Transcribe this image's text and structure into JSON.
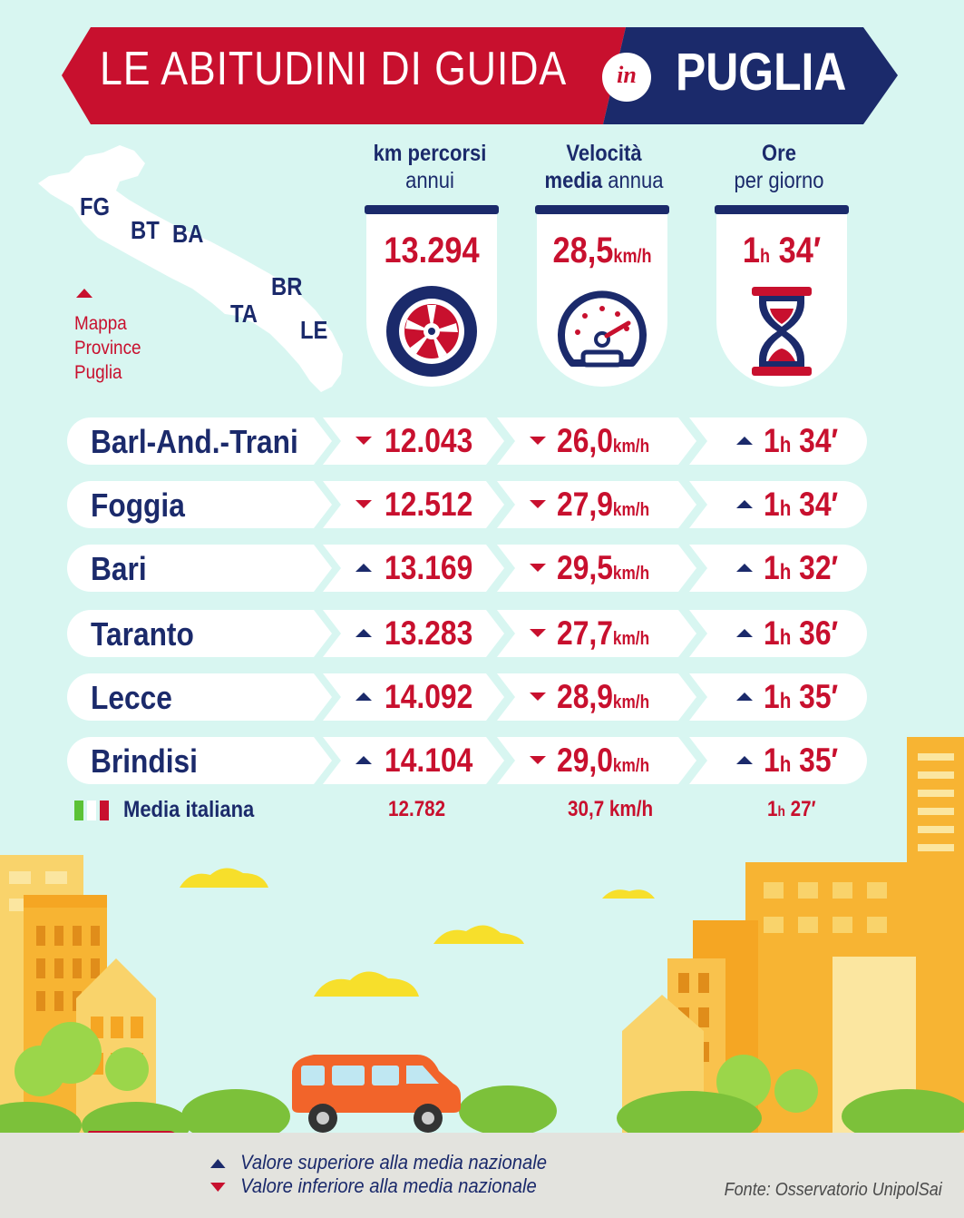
{
  "header": {
    "title": "LE ABITUDINI DI GUIDA",
    "connector": "in",
    "region": "PUGLIA",
    "colors": {
      "red": "#c8102e",
      "navy": "#1b2a6b"
    }
  },
  "map": {
    "provinces": [
      "FG",
      "BT",
      "BA",
      "BR",
      "TA",
      "LE"
    ],
    "caption": [
      "Mappa",
      "Province",
      "Puglia"
    ]
  },
  "columns": [
    {
      "head_bold": "km percorsi",
      "head_light": "annui",
      "value": "13.294",
      "unit": "",
      "icon": "tire-icon"
    },
    {
      "head_bold": "Velocità",
      "head_bold2": "media",
      "head_light": "annua",
      "value": "28,5",
      "unit": "km/h",
      "icon": "speedometer-icon"
    },
    {
      "head_bold": "Ore",
      "head_light": "per giorno",
      "value_h": "1",
      "value_unit_h": "h",
      "value_m": "34′",
      "icon": "hourglass-icon"
    }
  ],
  "rows": [
    {
      "name": "Barl-And.-Trani",
      "km": "12.043",
      "km_dir": "down",
      "vel": "26,0",
      "vel_dir": "down",
      "ore_h": "1",
      "ore_m": "34′",
      "ore_dir": "up"
    },
    {
      "name": "Foggia",
      "km": "12.512",
      "km_dir": "down",
      "vel": "27,9",
      "vel_dir": "down",
      "ore_h": "1",
      "ore_m": "34′",
      "ore_dir": "up"
    },
    {
      "name": "Bari",
      "km": "13.169",
      "km_dir": "up",
      "vel": "29,5",
      "vel_dir": "down",
      "ore_h": "1",
      "ore_m": "32′",
      "ore_dir": "up"
    },
    {
      "name": "Taranto",
      "km": "13.283",
      "km_dir": "up",
      "vel": "27,7",
      "vel_dir": "down",
      "ore_h": "1",
      "ore_m": "36′",
      "ore_dir": "up"
    },
    {
      "name": "Lecce",
      "km": "14.092",
      "km_dir": "up",
      "vel": "28,9",
      "vel_dir": "down",
      "ore_h": "1",
      "ore_m": "35′",
      "ore_dir": "up"
    },
    {
      "name": "Brindisi",
      "km": "14.104",
      "km_dir": "up",
      "vel": "29,0",
      "vel_dir": "down",
      "ore_h": "1",
      "ore_m": "35′",
      "ore_dir": "up"
    }
  ],
  "units": {
    "speed": "km/h",
    "hour": "h"
  },
  "media": {
    "label": "Media italiana",
    "km": "12.782",
    "vel": "30,7 km/h",
    "ore_h": "1",
    "ore_m": "27′"
  },
  "legend": {
    "up": "Valore superiore alla media nazionale",
    "down": "Valore inferiore alla media nazionale",
    "source": "Fonte: Osservatorio UnipolSai"
  }
}
